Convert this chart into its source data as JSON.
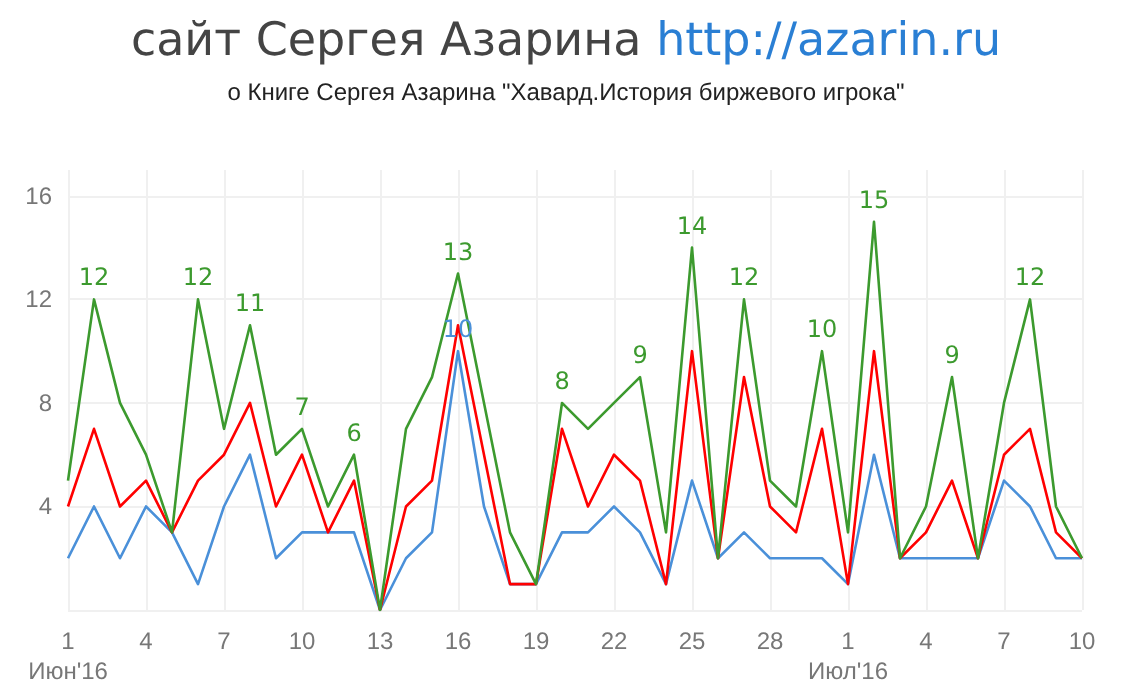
{
  "chart_data": {
    "type": "line",
    "title": "сайт Сергея Азарина http://azarin.ru",
    "subtitle": "о Книге Сергея Азарина \"Хавард.История биржевого игрока\"",
    "categories": [
      "1\nИюн'16",
      null,
      null,
      "4",
      null,
      null,
      "7",
      null,
      null,
      "10",
      null,
      null,
      "13",
      null,
      null,
      "16",
      null,
      null,
      "19",
      null,
      null,
      "22",
      null,
      null,
      "25",
      null,
      null,
      "28",
      null,
      null,
      "1\nИюл'16",
      null,
      null,
      "4",
      null,
      null,
      "7",
      null,
      null,
      "10"
    ],
    "series": [
      {
        "color": "#4a90d9",
        "values": [
          2,
          4,
          2,
          4,
          3,
          1,
          4,
          6,
          2,
          3,
          3,
          3,
          0,
          2,
          3,
          10,
          4,
          1,
          1,
          3,
          3,
          4,
          3,
          1,
          5,
          2,
          3,
          2,
          2,
          2,
          1,
          6,
          2,
          2,
          2,
          2,
          5,
          4,
          2,
          2
        ],
        "value_labels": [
          null,
          null,
          null,
          null,
          null,
          null,
          null,
          null,
          null,
          null,
          null,
          null,
          null,
          null,
          null,
          "10",
          null,
          null,
          null,
          null,
          null,
          null,
          null,
          null,
          null,
          null,
          null,
          null,
          null,
          null,
          null,
          null,
          null,
          null,
          null,
          null,
          null,
          null,
          null,
          null
        ]
      },
      {
        "color": "#ff0000",
        "values": [
          4,
          7,
          4,
          5,
          3,
          5,
          6,
          8,
          4,
          6,
          3,
          5,
          0,
          4,
          5,
          11,
          6,
          1,
          1,
          7,
          4,
          6,
          5,
          1,
          10,
          2,
          9,
          4,
          3,
          7,
          1,
          10,
          2,
          3,
          5,
          2,
          6,
          7,
          3,
          2
        ]
      },
      {
        "color": "#3c9a2e",
        "values": [
          5,
          12,
          8,
          6,
          3,
          12,
          7,
          11,
          6,
          7,
          4,
          6,
          0,
          7,
          9,
          13,
          8,
          3,
          1,
          8,
          7,
          8,
          9,
          3,
          14,
          2,
          12,
          5,
          4,
          10,
          3,
          15,
          2,
          4,
          9,
          2,
          8,
          12,
          4,
          2
        ],
        "value_labels": [
          null,
          "12",
          null,
          null,
          null,
          "12",
          null,
          "11",
          null,
          "7",
          null,
          "6",
          null,
          null,
          null,
          "13",
          null,
          null,
          null,
          "8",
          null,
          null,
          "9",
          null,
          "14",
          null,
          "12",
          null,
          null,
          "10",
          null,
          "15",
          null,
          null,
          "9",
          null,
          null,
          "12",
          null,
          null
        ]
      }
    ],
    "ylim": [
      0,
      17
    ],
    "yticks": [
      {
        "value": 0,
        "label": null
      },
      4,
      8,
      12,
      16
    ],
    "grid": true,
    "marker": "none",
    "line_style": "solid"
  }
}
